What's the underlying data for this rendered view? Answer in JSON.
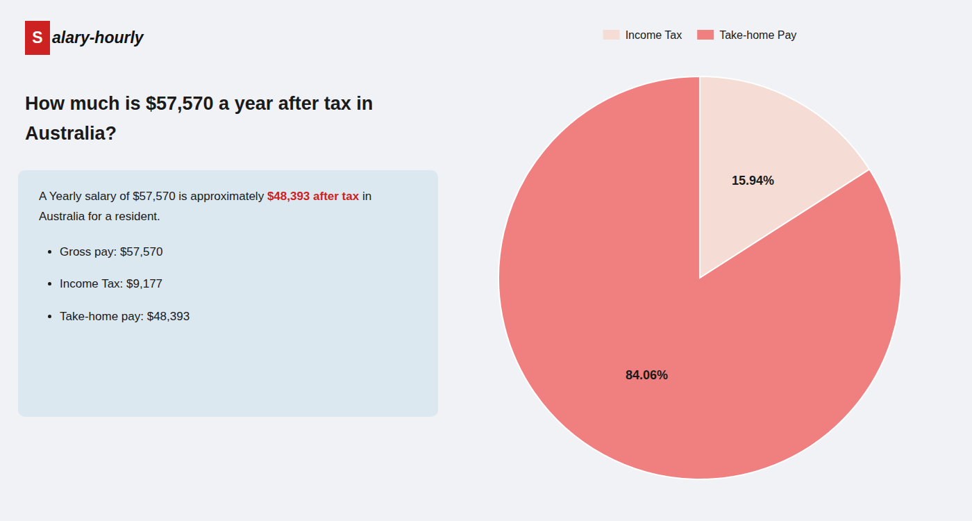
{
  "chart_data": {
    "type": "pie",
    "title": "How much is $57,570 a year after tax in Australia?",
    "categories": [
      "Income Tax",
      "Take-home Pay"
    ],
    "values": [
      15.94,
      84.06
    ],
    "value_labels": [
      "15.94%",
      "84.06%"
    ],
    "colors": [
      "#f5ddd5",
      "#f08080"
    ],
    "data_labels": true,
    "legend": "top",
    "annotations": [
      [
        "S",
        "alary-hourly"
      ],
      [
        "A Yearly salary of $57,570 is approximately ",
        "$48,393 after tax",
        " in"
      ],
      [
        "Australia for a resident."
      ],
      [
        "Gross pay: $57,570"
      ],
      [
        "Income Tax: $9,177"
      ],
      [
        "Take-home pay: $48,393"
      ]
    ]
  }
}
